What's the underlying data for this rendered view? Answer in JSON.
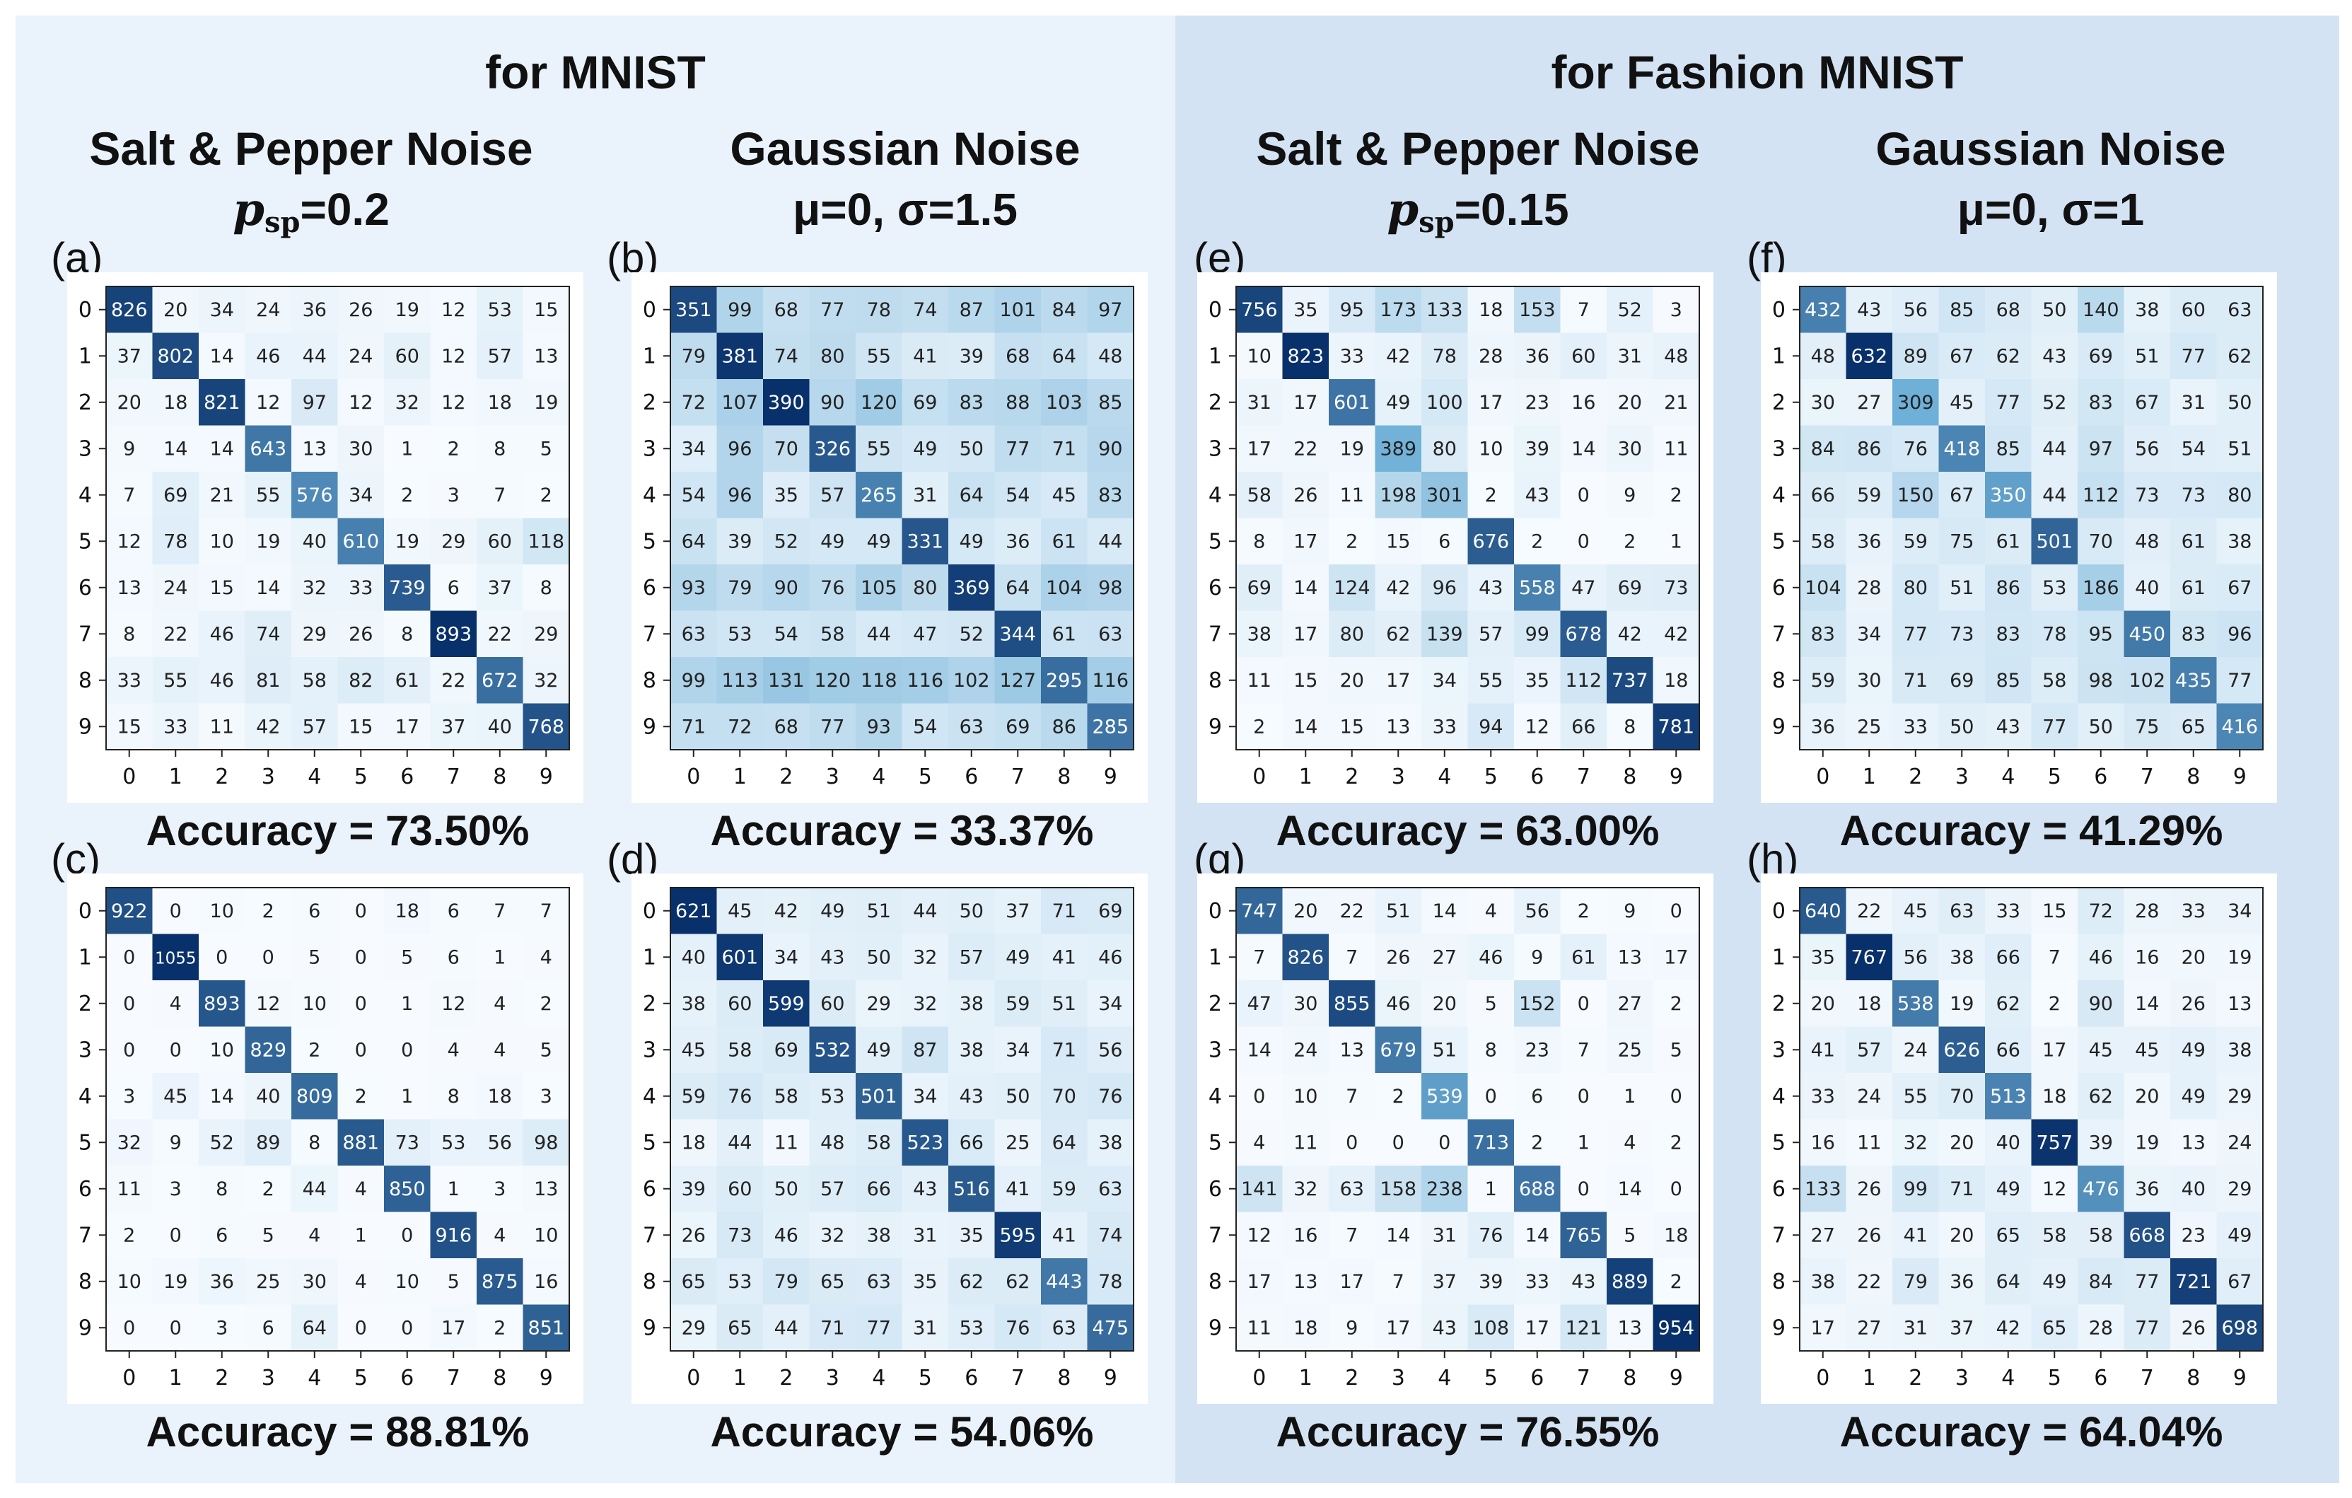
{
  "figure": {
    "sections": [
      {
        "title": "for MNIST"
      },
      {
        "title": "for Fashion MNIST"
      }
    ],
    "columns": [
      {
        "title": "Salt & Pepper Noise",
        "param_var": "p",
        "param_sub": "sp",
        "param_rest": "=0.2"
      },
      {
        "title": "Gaussian Noise",
        "param_text": "μ=0, σ=1.5"
      },
      {
        "title": "Salt & Pepper Noise",
        "param_var": "p",
        "param_sub": "sp",
        "param_rest": "=0.15"
      },
      {
        "title": "Gaussian Noise",
        "param_text": "μ=0, σ=1"
      }
    ],
    "colormap": {
      "low": "#f7fbff",
      "mid": "#6baed6",
      "high": "#08306b"
    }
  },
  "chart_data": [
    {
      "type": "heatmap",
      "panel": "(a)",
      "accuracy_label": "Accuracy = 73.50%",
      "x": [
        "0",
        "1",
        "2",
        "3",
        "4",
        "5",
        "6",
        "7",
        "8",
        "9"
      ],
      "y": [
        "0",
        "1",
        "2",
        "3",
        "4",
        "5",
        "6",
        "7",
        "8",
        "9"
      ],
      "values": [
        [
          826,
          20,
          34,
          24,
          36,
          26,
          19,
          12,
          53,
          15
        ],
        [
          37,
          802,
          14,
          46,
          44,
          24,
          60,
          12,
          57,
          13
        ],
        [
          20,
          18,
          821,
          12,
          97,
          12,
          32,
          12,
          18,
          19
        ],
        [
          9,
          14,
          14,
          643,
          13,
          30,
          1,
          2,
          8,
          5
        ],
        [
          7,
          69,
          21,
          55,
          576,
          34,
          2,
          3,
          7,
          2
        ],
        [
          12,
          78,
          10,
          19,
          40,
          610,
          19,
          29,
          60,
          118
        ],
        [
          13,
          24,
          15,
          14,
          32,
          33,
          739,
          6,
          37,
          8
        ],
        [
          8,
          22,
          46,
          74,
          29,
          26,
          8,
          893,
          22,
          29
        ],
        [
          33,
          55,
          46,
          81,
          58,
          82,
          61,
          22,
          672,
          32
        ],
        [
          15,
          33,
          11,
          42,
          57,
          15,
          17,
          37,
          40,
          768
        ]
      ]
    },
    {
      "type": "heatmap",
      "panel": "(b)",
      "accuracy_label": "Accuracy = 33.37%",
      "x": [
        "0",
        "1",
        "2",
        "3",
        "4",
        "5",
        "6",
        "7",
        "8",
        "9"
      ],
      "y": [
        "0",
        "1",
        "2",
        "3",
        "4",
        "5",
        "6",
        "7",
        "8",
        "9"
      ],
      "values": [
        [
          351,
          99,
          68,
          77,
          78,
          74,
          87,
          101,
          84,
          97
        ],
        [
          79,
          381,
          74,
          80,
          55,
          41,
          39,
          68,
          64,
          48
        ],
        [
          72,
          107,
          390,
          90,
          120,
          69,
          83,
          88,
          103,
          85
        ],
        [
          34,
          96,
          70,
          326,
          55,
          49,
          50,
          77,
          71,
          90
        ],
        [
          54,
          96,
          35,
          57,
          265,
          31,
          64,
          54,
          45,
          83
        ],
        [
          64,
          39,
          52,
          49,
          49,
          331,
          49,
          36,
          61,
          44
        ],
        [
          93,
          79,
          90,
          76,
          105,
          80,
          369,
          64,
          104,
          98
        ],
        [
          63,
          53,
          54,
          58,
          44,
          47,
          52,
          344,
          61,
          63
        ],
        [
          99,
          113,
          131,
          120,
          118,
          116,
          102,
          127,
          295,
          116
        ],
        [
          71,
          72,
          68,
          77,
          93,
          54,
          63,
          69,
          86,
          285
        ]
      ]
    },
    {
      "type": "heatmap",
      "panel": "(c)",
      "accuracy_label": "Accuracy = 88.81%",
      "x": [
        "0",
        "1",
        "2",
        "3",
        "4",
        "5",
        "6",
        "7",
        "8",
        "9"
      ],
      "y": [
        "0",
        "1",
        "2",
        "3",
        "4",
        "5",
        "6",
        "7",
        "8",
        "9"
      ],
      "values": [
        [
          922,
          0,
          10,
          2,
          6,
          0,
          18,
          6,
          7,
          7
        ],
        [
          0,
          1055,
          0,
          0,
          5,
          0,
          5,
          6,
          1,
          4
        ],
        [
          0,
          4,
          893,
          12,
          10,
          0,
          1,
          12,
          4,
          2
        ],
        [
          0,
          0,
          10,
          829,
          2,
          0,
          0,
          4,
          4,
          5
        ],
        [
          3,
          45,
          14,
          40,
          809,
          2,
          1,
          8,
          18,
          3
        ],
        [
          32,
          9,
          52,
          89,
          8,
          881,
          73,
          53,
          56,
          98
        ],
        [
          11,
          3,
          8,
          2,
          44,
          4,
          850,
          1,
          3,
          13
        ],
        [
          2,
          0,
          6,
          5,
          4,
          1,
          0,
          916,
          4,
          10
        ],
        [
          10,
          19,
          36,
          25,
          30,
          4,
          10,
          5,
          875,
          16
        ],
        [
          0,
          0,
          3,
          6,
          64,
          0,
          0,
          17,
          2,
          851
        ]
      ]
    },
    {
      "type": "heatmap",
      "panel": "(d)",
      "accuracy_label": "Accuracy = 54.06%",
      "x": [
        "0",
        "1",
        "2",
        "3",
        "4",
        "5",
        "6",
        "7",
        "8",
        "9"
      ],
      "y": [
        "0",
        "1",
        "2",
        "3",
        "4",
        "5",
        "6",
        "7",
        "8",
        "9"
      ],
      "values": [
        [
          621,
          45,
          42,
          49,
          51,
          44,
          50,
          37,
          71,
          69
        ],
        [
          40,
          601,
          34,
          43,
          50,
          32,
          57,
          49,
          41,
          46
        ],
        [
          38,
          60,
          599,
          60,
          29,
          32,
          38,
          59,
          51,
          34
        ],
        [
          45,
          58,
          69,
          532,
          49,
          87,
          38,
          34,
          71,
          56
        ],
        [
          59,
          76,
          58,
          53,
          501,
          34,
          43,
          50,
          70,
          76
        ],
        [
          18,
          44,
          11,
          48,
          58,
          523,
          66,
          25,
          64,
          38
        ],
        [
          39,
          60,
          50,
          57,
          66,
          43,
          516,
          41,
          59,
          63
        ],
        [
          26,
          73,
          46,
          32,
          38,
          31,
          35,
          595,
          41,
          74
        ],
        [
          65,
          53,
          79,
          65,
          63,
          35,
          62,
          62,
          443,
          78
        ],
        [
          29,
          65,
          44,
          71,
          77,
          31,
          53,
          76,
          63,
          475
        ]
      ]
    },
    {
      "type": "heatmap",
      "panel": "(e)",
      "accuracy_label": "Accuracy = 63.00%",
      "x": [
        "0",
        "1",
        "2",
        "3",
        "4",
        "5",
        "6",
        "7",
        "8",
        "9"
      ],
      "y": [
        "0",
        "1",
        "2",
        "3",
        "4",
        "5",
        "6",
        "7",
        "8",
        "9"
      ],
      "values": [
        [
          756,
          35,
          95,
          173,
          133,
          18,
          153,
          7,
          52,
          3
        ],
        [
          10,
          823,
          33,
          42,
          78,
          28,
          36,
          60,
          31,
          48
        ],
        [
          31,
          17,
          601,
          49,
          100,
          17,
          23,
          16,
          20,
          21
        ],
        [
          17,
          22,
          19,
          389,
          80,
          10,
          39,
          14,
          30,
          11
        ],
        [
          58,
          26,
          11,
          198,
          301,
          2,
          43,
          0,
          9,
          2
        ],
        [
          8,
          17,
          2,
          15,
          6,
          676,
          2,
          0,
          2,
          1
        ],
        [
          69,
          14,
          124,
          42,
          96,
          43,
          558,
          47,
          69,
          73
        ],
        [
          38,
          17,
          80,
          62,
          139,
          57,
          99,
          678,
          42,
          42
        ],
        [
          11,
          15,
          20,
          17,
          34,
          55,
          35,
          112,
          737,
          18
        ],
        [
          2,
          14,
          15,
          13,
          33,
          94,
          12,
          66,
          8,
          781
        ]
      ]
    },
    {
      "type": "heatmap",
      "panel": "(f)",
      "accuracy_label": "Accuracy = 41.29%",
      "x": [
        "0",
        "1",
        "2",
        "3",
        "4",
        "5",
        "6",
        "7",
        "8",
        "9"
      ],
      "y": [
        "0",
        "1",
        "2",
        "3",
        "4",
        "5",
        "6",
        "7",
        "8",
        "9"
      ],
      "values": [
        [
          432,
          43,
          56,
          85,
          68,
          50,
          140,
          38,
          60,
          63
        ],
        [
          48,
          632,
          89,
          67,
          62,
          43,
          69,
          51,
          77,
          62
        ],
        [
          30,
          27,
          309,
          45,
          77,
          52,
          83,
          67,
          31,
          50
        ],
        [
          84,
          86,
          76,
          418,
          85,
          44,
          97,
          56,
          54,
          51
        ],
        [
          66,
          59,
          150,
          67,
          350,
          44,
          112,
          73,
          73,
          80
        ],
        [
          58,
          36,
          59,
          75,
          61,
          501,
          70,
          48,
          61,
          38
        ],
        [
          104,
          28,
          80,
          51,
          86,
          53,
          186,
          40,
          61,
          67
        ],
        [
          83,
          34,
          77,
          73,
          83,
          78,
          95,
          450,
          83,
          96
        ],
        [
          59,
          30,
          71,
          69,
          85,
          58,
          98,
          102,
          435,
          77
        ],
        [
          36,
          25,
          33,
          50,
          43,
          77,
          50,
          75,
          65,
          416
        ]
      ]
    },
    {
      "type": "heatmap",
      "panel": "(g)",
      "accuracy_label": "Accuracy = 76.55%",
      "x": [
        "0",
        "1",
        "2",
        "3",
        "4",
        "5",
        "6",
        "7",
        "8",
        "9"
      ],
      "y": [
        "0",
        "1",
        "2",
        "3",
        "4",
        "5",
        "6",
        "7",
        "8",
        "9"
      ],
      "values": [
        [
          747,
          20,
          22,
          51,
          14,
          4,
          56,
          2,
          9,
          0
        ],
        [
          7,
          826,
          7,
          26,
          27,
          46,
          9,
          61,
          13,
          17
        ],
        [
          47,
          30,
          855,
          46,
          20,
          5,
          152,
          0,
          27,
          2
        ],
        [
          14,
          24,
          13,
          679,
          51,
          8,
          23,
          7,
          25,
          5
        ],
        [
          0,
          10,
          7,
          2,
          539,
          0,
          6,
          0,
          1,
          0
        ],
        [
          4,
          11,
          0,
          0,
          0,
          713,
          2,
          1,
          4,
          2
        ],
        [
          141,
          32,
          63,
          158,
          238,
          1,
          688,
          0,
          14,
          0
        ],
        [
          12,
          16,
          7,
          14,
          31,
          76,
          14,
          765,
          5,
          18
        ],
        [
          17,
          13,
          17,
          7,
          37,
          39,
          33,
          43,
          889,
          2
        ],
        [
          11,
          18,
          9,
          17,
          43,
          108,
          17,
          121,
          13,
          954
        ]
      ]
    },
    {
      "type": "heatmap",
      "panel": "(h)",
      "accuracy_label": "Accuracy = 64.04%",
      "x": [
        "0",
        "1",
        "2",
        "3",
        "4",
        "5",
        "6",
        "7",
        "8",
        "9"
      ],
      "y": [
        "0",
        "1",
        "2",
        "3",
        "4",
        "5",
        "6",
        "7",
        "8",
        "9"
      ],
      "values": [
        [
          640,
          22,
          45,
          63,
          33,
          15,
          72,
          28,
          33,
          34
        ],
        [
          35,
          767,
          56,
          38,
          66,
          7,
          46,
          16,
          20,
          19
        ],
        [
          20,
          18,
          538,
          19,
          62,
          2,
          90,
          14,
          26,
          13
        ],
        [
          41,
          57,
          24,
          626,
          66,
          17,
          45,
          45,
          49,
          38
        ],
        [
          33,
          24,
          55,
          70,
          513,
          18,
          62,
          20,
          49,
          29
        ],
        [
          16,
          11,
          32,
          20,
          40,
          757,
          39,
          19,
          13,
          24
        ],
        [
          133,
          26,
          99,
          71,
          49,
          12,
          476,
          36,
          40,
          29
        ],
        [
          27,
          26,
          41,
          20,
          65,
          58,
          58,
          668,
          23,
          49
        ],
        [
          38,
          22,
          79,
          36,
          64,
          49,
          84,
          77,
          721,
          67
        ],
        [
          17,
          27,
          31,
          37,
          42,
          65,
          28,
          77,
          26,
          698
        ]
      ]
    }
  ]
}
